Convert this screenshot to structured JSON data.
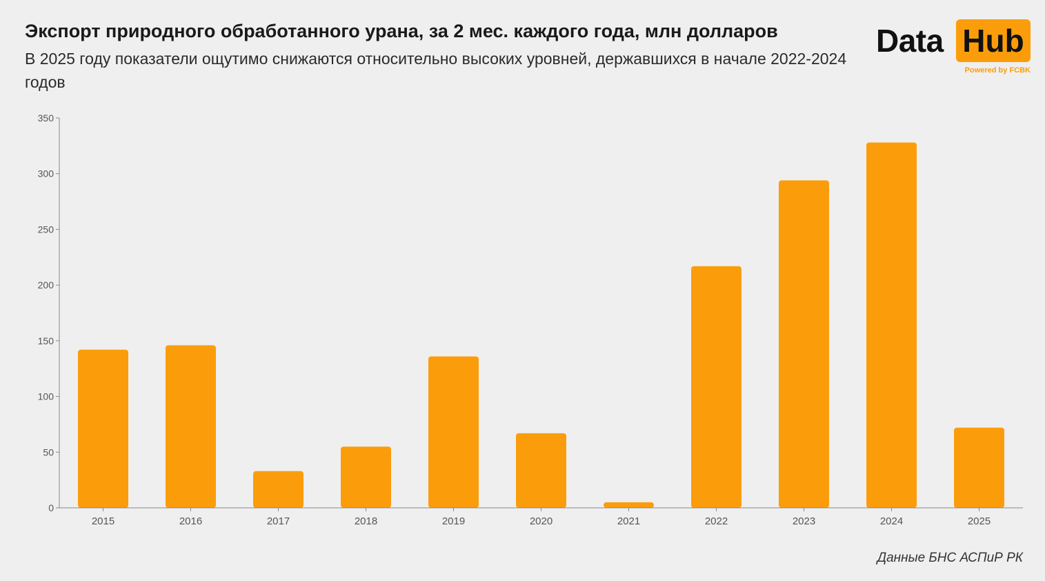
{
  "header": {
    "title": "Экспорт природного обработанного урана, за 2 мес. каждого года, млн долларов",
    "subtitle": "В 2025 году показатели ощутимо снижаются относительно высоких уровней, державшихся в начале 2022-2024 годов"
  },
  "logo": {
    "word1": "Data",
    "word2": "Hub",
    "tagline": "Powered by FCBK"
  },
  "source": "Данные БНС АСПиР РК",
  "colors": {
    "bar": "#fb9d0b",
    "background": "#efefef",
    "axis": "#888888"
  },
  "chart_data": {
    "type": "bar",
    "categories": [
      "2015",
      "2016",
      "2017",
      "2018",
      "2019",
      "2020",
      "2021",
      "2022",
      "2023",
      "2024",
      "2025"
    ],
    "values": [
      142,
      146,
      33,
      55,
      136,
      67,
      5,
      217,
      294,
      328,
      72
    ],
    "title": "Экспорт природного обработанного урана, за 2 мес. каждого года, млн долларов",
    "xlabel": "",
    "ylabel": "",
    "ylim": [
      0,
      350
    ],
    "yticks": [
      0,
      50,
      100,
      150,
      200,
      250,
      300,
      350
    ],
    "grid": false,
    "legend": "none"
  }
}
